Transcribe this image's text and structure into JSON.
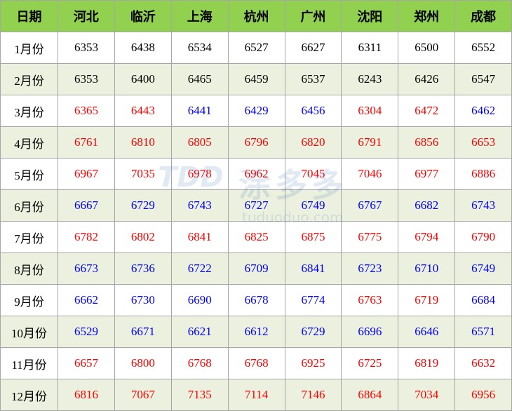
{
  "table": {
    "header": [
      "日期",
      "河北",
      "临沂",
      "上海",
      "杭州",
      "广州",
      "沈阳",
      "郑州",
      "成都"
    ],
    "header_color": "#92d050",
    "stripe_color": "#ebf1de",
    "rows": [
      {
        "label": "1月份",
        "values": [
          6353,
          6438,
          6534,
          6527,
          6627,
          6311,
          6500,
          6552
        ],
        "colors": [
          "#000000",
          "#000000",
          "#000000",
          "#000000",
          "#000000",
          "#000000",
          "#000000",
          "#000000"
        ]
      },
      {
        "label": "2月份",
        "values": [
          6353,
          6400,
          6465,
          6459,
          6537,
          6243,
          6426,
          6547
        ],
        "colors": [
          "#000000",
          "#000000",
          "#000000",
          "#000000",
          "#000000",
          "#000000",
          "#000000",
          "#000000"
        ]
      },
      {
        "label": "3月份",
        "values": [
          6365,
          6443,
          6441,
          6429,
          6456,
          6304,
          6472,
          6462
        ],
        "colors": [
          "#ff0000",
          "#ff0000",
          "#0000ff",
          "#0000ff",
          "#0000ff",
          "#ff0000",
          "#ff0000",
          "#0000ff"
        ]
      },
      {
        "label": "4月份",
        "values": [
          6761,
          6810,
          6805,
          6796,
          6820,
          6791,
          6856,
          6653
        ],
        "colors": [
          "#ff0000",
          "#ff0000",
          "#ff0000",
          "#ff0000",
          "#ff0000",
          "#ff0000",
          "#ff0000",
          "#ff0000"
        ]
      },
      {
        "label": "5月份",
        "values": [
          6967,
          7035,
          6978,
          6962,
          7045,
          7046,
          6977,
          6886
        ],
        "colors": [
          "#ff0000",
          "#ff0000",
          "#ff0000",
          "#ff0000",
          "#ff0000",
          "#ff0000",
          "#ff0000",
          "#ff0000"
        ]
      },
      {
        "label": "6月份",
        "values": [
          6667,
          6729,
          6743,
          6727,
          6749,
          6767,
          6682,
          6743
        ],
        "colors": [
          "#0000ff",
          "#0000ff",
          "#0000ff",
          "#0000ff",
          "#0000ff",
          "#0000ff",
          "#0000ff",
          "#0000ff"
        ]
      },
      {
        "label": "7月份",
        "values": [
          6782,
          6802,
          6841,
          6825,
          6875,
          6775,
          6794,
          6790
        ],
        "colors": [
          "#ff0000",
          "#ff0000",
          "#ff0000",
          "#ff0000",
          "#ff0000",
          "#ff0000",
          "#ff0000",
          "#ff0000"
        ]
      },
      {
        "label": "8月份",
        "values": [
          6673,
          6736,
          6722,
          6709,
          6841,
          6723,
          6710,
          6749
        ],
        "colors": [
          "#0000ff",
          "#0000ff",
          "#0000ff",
          "#0000ff",
          "#0000ff",
          "#0000ff",
          "#0000ff",
          "#0000ff"
        ]
      },
      {
        "label": "9月份",
        "values": [
          6662,
          6730,
          6690,
          6678,
          6774,
          6763,
          6719,
          6684
        ],
        "colors": [
          "#0000ff",
          "#0000ff",
          "#0000ff",
          "#0000ff",
          "#0000ff",
          "#ff0000",
          "#ff0000",
          "#0000ff"
        ]
      },
      {
        "label": "10月份",
        "values": [
          6529,
          6671,
          6621,
          6612,
          6729,
          6696,
          6646,
          6571
        ],
        "colors": [
          "#0000ff",
          "#0000ff",
          "#0000ff",
          "#0000ff",
          "#0000ff",
          "#0000ff",
          "#0000ff",
          "#0000ff"
        ]
      },
      {
        "label": "11月份",
        "values": [
          6657,
          6800,
          6768,
          6768,
          6925,
          6725,
          6819,
          6632
        ],
        "colors": [
          "#ff0000",
          "#ff0000",
          "#ff0000",
          "#ff0000",
          "#ff0000",
          "#ff0000",
          "#ff0000",
          "#ff0000"
        ]
      },
      {
        "label": "12月份",
        "values": [
          6816,
          7067,
          7135,
          7114,
          7146,
          6864,
          7034,
          6956
        ],
        "colors": [
          "#ff0000",
          "#ff0000",
          "#ff0000",
          "#ff0000",
          "#ff0000",
          "#ff0000",
          "#ff0000",
          "#ff0000"
        ]
      }
    ]
  },
  "watermark": {
    "logo": "TDD",
    "name": "涂多多",
    "site": "tuduoduo.com"
  }
}
